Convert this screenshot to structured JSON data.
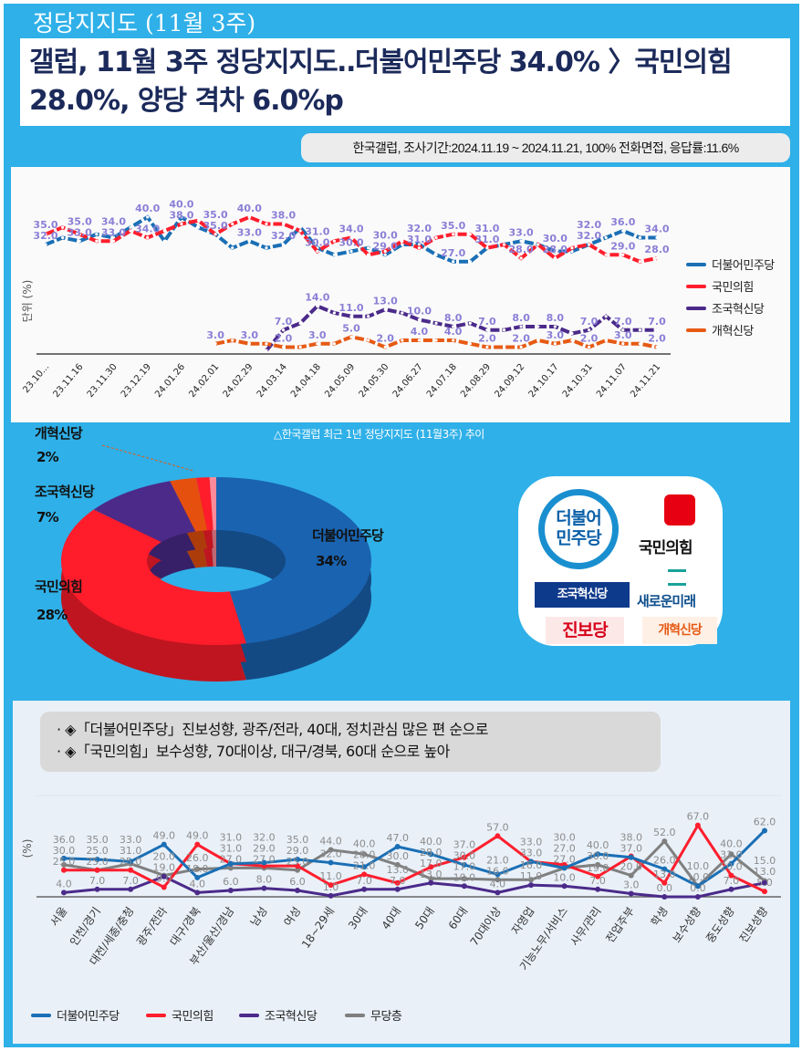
{
  "header": {
    "kicker": "정당지지도 (11월 3주)",
    "headline": "갤럽, 11월 3주 정당지지도‥더불어민주당 34.0% 〉국민의힘 28.0%, 양당 격차 6.0%p",
    "meta": "한국갤럽, 조사기간:2024.11.19 ~ 2024.11.21, 100% 전화면접, 응답률:11.6%"
  },
  "colors": {
    "dp": "#1a6fb5",
    "ppp": "#ff1e2d",
    "cho": "#4b2a8a",
    "reform": "#e65a14",
    "grey": "#7f7f7f"
  },
  "trend": {
    "ylabel": "단위 (%)",
    "caption": "△한국갤럽 최근 1년 정당지지도 (11월3주) 추이",
    "x_labels": [
      "23.10...",
      "23.11.16",
      "23.11.30",
      "23.12.19",
      "24.01.26",
      "24.02.01",
      "24.02.29",
      "24.03.14",
      "24.04.18",
      "24.05.09",
      "24.05.30",
      "24.06.27",
      "24.07.18",
      "24.08.29",
      "24.09.12",
      "24.10.17",
      "24.10.31",
      "24.11.07",
      "24.11.21"
    ],
    "series": [
      {
        "name": "더불어민주당",
        "key": "dp",
        "values": [
          32,
          34,
          33,
          35,
          34,
          37,
          40,
          33,
          40,
          37,
          35,
          31,
          33,
          31,
          32,
          37,
          31,
          29,
          30,
          31,
          29,
          32,
          32,
          29,
          27,
          27,
          31,
          32,
          33,
          32,
          30,
          30,
          32,
          34,
          36,
          34,
          34
        ]
      },
      {
        "name": "국민의힘",
        "key": "ppp",
        "values": [
          35,
          37,
          35,
          33,
          33,
          36,
          34,
          36,
          38,
          39,
          35,
          38,
          40,
          38,
          38,
          36,
          30,
          33,
          34,
          29,
          30,
          33,
          31,
          34,
          35,
          35,
          31,
          32,
          28,
          32,
          28,
          31,
          32,
          29,
          29,
          27,
          28
        ]
      },
      {
        "name": "조국혁신당",
        "key": "cho",
        "values": [
          null,
          null,
          null,
          null,
          null,
          null,
          null,
          null,
          null,
          null,
          null,
          null,
          null,
          1,
          7,
          9,
          14,
          12,
          11,
          11,
          13,
          12,
          10,
          9,
          8,
          9,
          7,
          7,
          8,
          8,
          8,
          6,
          7,
          11,
          7,
          7,
          7
        ]
      },
      {
        "name": "개혁신당",
        "key": "reform",
        "values": [
          null,
          null,
          null,
          null,
          null,
          null,
          null,
          null,
          null,
          null,
          3,
          4,
          3,
          3,
          2,
          2,
          3,
          3,
          5,
          4,
          2,
          4,
          4,
          4,
          4,
          3,
          2,
          2,
          2,
          4,
          3,
          4,
          2,
          4,
          3,
          3,
          2
        ]
      }
    ]
  },
  "donut": {
    "slices": [
      {
        "name": "더불어민주당",
        "value": 34,
        "label": "34%",
        "color": "#1a63b0"
      },
      {
        "name": "국민의힘",
        "value": 28,
        "label": "28%",
        "color": "#ff1c2b"
      },
      {
        "name": "조국혁신당",
        "value": 7,
        "label": "7%",
        "color": "#4b2a8a"
      },
      {
        "name": "개혁신당",
        "value": 2,
        "label": "2%",
        "color": "#e6500f"
      },
      {
        "name": "",
        "value": 1,
        "label": "",
        "color": "#ff1c2b"
      },
      {
        "name": "",
        "value": 0.5,
        "label": "",
        "color": "#ff8a9a"
      }
    ]
  },
  "logos": {
    "dp": "더불어\n민주당",
    "ppp": "국민의힘",
    "cho": "조국혁신당",
    "saeromi": "새로운미래",
    "jinbo": "진보당",
    "reform": "개혁신당"
  },
  "notes": [
    "· ◈「더불어민주당」진보성향, 광주/전라, 40대, 정치관심 많은 편 순으로",
    "· ◈「국민의힘」보수성향, 70대이상, 대구/경북, 60대 순으로 높아"
  ],
  "demo": {
    "ylabel": "(%)",
    "categories": [
      "서울",
      "인천/경기",
      "대전/세종/충청",
      "광주/전라",
      "대구/경북",
      "부산/울산/경남",
      "남성",
      "여성",
      "18~29세",
      "30대",
      "40대",
      "50대",
      "60대",
      "70대이상",
      "자영업",
      "기능노무/서비스",
      "사무/관리",
      "전업주부",
      "학생",
      "보수성향",
      "중도성향",
      "진보성향"
    ],
    "series": [
      {
        "name": "더불어민주당",
        "key": "dp",
        "values": [
          36,
          35,
          33,
          49,
          18,
          31,
          32,
          35,
          32,
          28,
          47,
          40,
          30,
          21,
          33,
          27,
          40,
          37,
          26,
          10,
          31,
          62
        ]
      },
      {
        "name": "국민의힘",
        "key": "ppp",
        "values": [
          25,
          25,
          25,
          9,
          49,
          31,
          29,
          29,
          11,
          21,
          13,
          28,
          37,
          57,
          33,
          30,
          19,
          38,
          13,
          67,
          20,
          5
        ]
      },
      {
        "name": "조국혁신당",
        "key": "cho",
        "values": [
          4,
          7,
          7,
          19,
          4,
          6,
          8,
          6,
          1,
          7,
          7,
          13,
          10,
          4,
          11,
          10,
          7,
          3,
          0,
          0,
          7,
          13
        ]
      },
      {
        "name": "무당층",
        "key": "grey",
        "values": [
          30,
          25,
          31,
          20,
          26,
          27,
          27,
          25,
          44,
          40,
          30,
          17,
          17,
          16,
          16,
          27,
          30,
          20,
          52,
          10,
          40,
          15
        ]
      }
    ]
  }
}
